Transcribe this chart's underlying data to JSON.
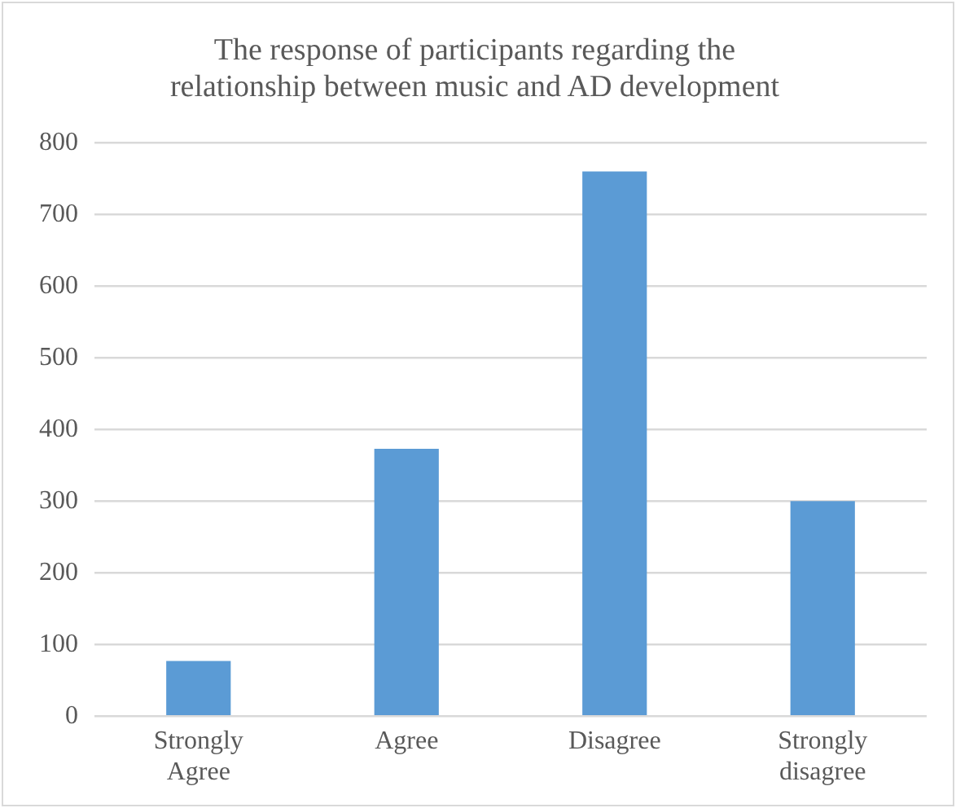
{
  "chart_data": {
    "type": "bar",
    "title": "The response of participants regarding the relationship between music and AD development",
    "categories": [
      "Strongly Agree",
      "Agree",
      "Disagree",
      "Strongly disagree"
    ],
    "values": [
      77,
      373,
      760,
      300
    ],
    "color": "#5b9bd5",
    "ylim": [
      0,
      800
    ],
    "yticks": [
      0,
      100,
      200,
      300,
      400,
      500,
      600,
      700,
      800
    ],
    "grid": "y",
    "legend": false
  }
}
